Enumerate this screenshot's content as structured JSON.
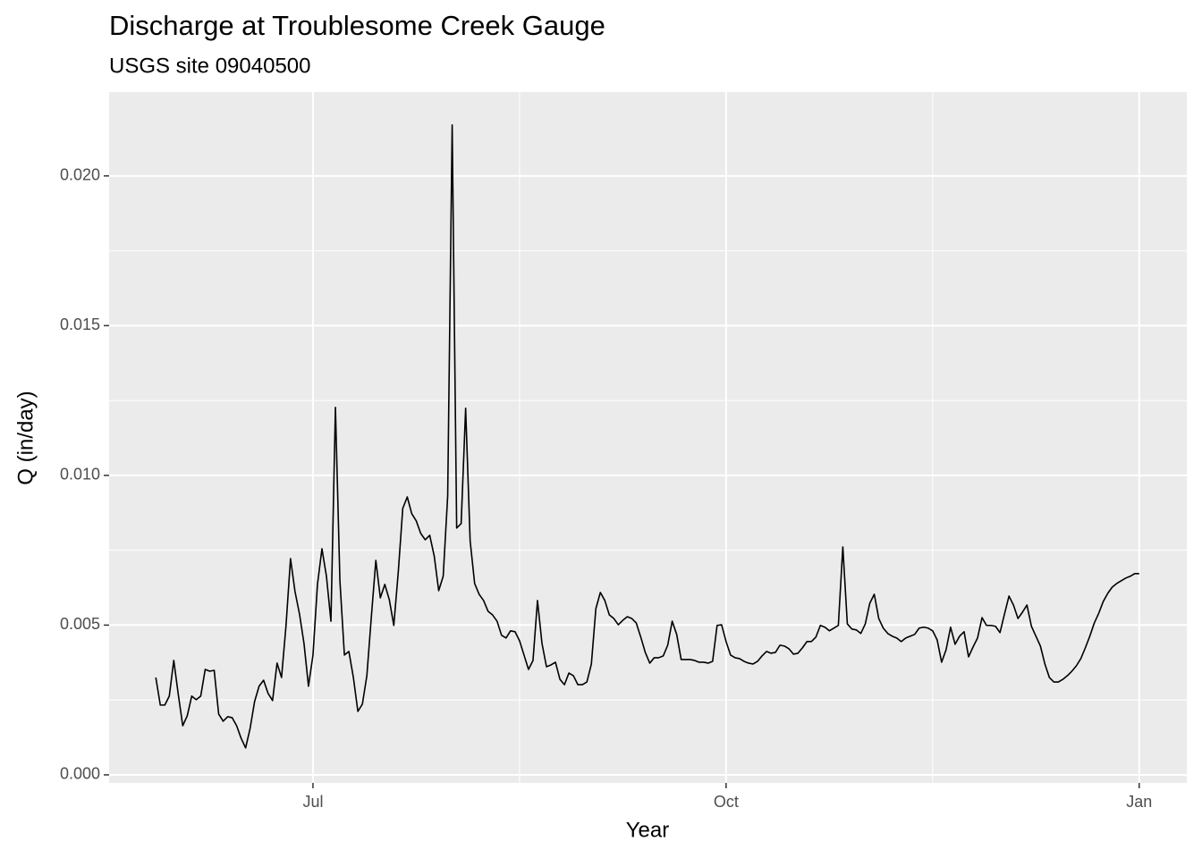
{
  "chart_data": {
    "type": "line",
    "title": "Discharge at Troublesome Creek Gauge",
    "subtitle": "USGS site 09040500",
    "x_label": "Year",
    "y_label": "Q (in/day)",
    "color": "#000000",
    "grid": true,
    "xlim": [
      -45.4,
      194.6
    ],
    "xticks": [
      {
        "value": 0,
        "label": "Jul"
      },
      {
        "value": 92,
        "label": "Oct"
      },
      {
        "value": 184,
        "label": "Jan"
      }
    ],
    "ylim": [
      -0.00027,
      0.0228
    ],
    "yticks": [
      {
        "value": 0,
        "label": "0.000"
      },
      0.005,
      {
        "value": 0.01,
        "label": "0.010"
      },
      0.015,
      {
        "value": 0.02,
        "label": "0.020"
      }
    ],
    "x": [
      -35,
      -34,
      -33,
      -32,
      -31,
      -30,
      -29,
      -28,
      -27,
      -26,
      -25,
      -24,
      -23,
      -22,
      -21,
      -20,
      -19,
      -18,
      -17,
      -16,
      -15,
      -14,
      -13,
      -12,
      -11,
      -10,
      -9,
      -8,
      -7,
      -6,
      -5,
      -4,
      -3,
      -2,
      -1,
      0,
      1,
      2,
      3,
      4,
      5,
      6,
      7,
      8,
      9,
      10,
      11,
      12,
      13,
      14,
      15,
      16,
      17,
      18,
      19,
      20,
      21,
      22,
      23,
      24,
      25,
      26,
      27,
      28,
      29,
      30,
      31,
      32,
      33,
      34,
      35,
      36,
      37,
      38,
      39,
      40,
      41,
      42,
      43,
      44,
      45,
      46,
      47,
      48,
      49,
      50,
      51,
      52,
      53,
      54,
      55,
      56,
      57,
      58,
      59,
      60,
      61,
      62,
      63,
      64,
      65,
      66,
      67,
      68,
      69,
      70,
      71,
      72,
      73,
      74,
      75,
      76,
      77,
      78,
      79,
      80,
      81,
      82,
      83,
      84,
      85,
      86,
      87,
      88,
      89,
      90,
      91,
      92,
      93,
      94,
      95,
      96,
      97,
      98,
      99,
      100,
      101,
      102,
      103,
      104,
      105,
      106,
      107,
      108,
      109,
      110,
      111,
      112,
      113,
      114,
      115,
      116,
      117,
      118,
      119,
      120,
      121,
      122,
      123,
      124,
      125,
      126,
      127,
      128,
      129,
      130,
      131,
      132,
      133,
      134,
      135,
      136,
      137,
      138,
      139,
      140,
      141,
      142,
      143,
      144,
      145,
      146,
      147,
      148,
      149,
      150,
      151,
      152,
      153,
      154,
      155,
      156,
      157,
      158,
      159,
      160,
      161,
      162,
      163,
      164,
      165,
      166,
      167,
      168,
      169,
      170,
      171,
      172,
      173,
      174,
      175,
      176,
      177,
      178,
      179,
      180,
      181,
      182,
      183,
      184
    ],
    "values": [
      0.00325,
      0.00233,
      0.00233,
      0.00263,
      0.00382,
      0.00269,
      0.00164,
      0.00197,
      0.00263,
      0.00251,
      0.00263,
      0.00352,
      0.00346,
      0.00349,
      0.00203,
      0.00179,
      0.00194,
      0.00191,
      0.00164,
      0.00122,
      0.0009,
      0.00155,
      0.00245,
      0.00296,
      0.00316,
      0.00272,
      0.00248,
      0.00373,
      0.00325,
      0.00499,
      0.00722,
      0.00612,
      0.00537,
      0.00439,
      0.00296,
      0.004,
      0.00636,
      0.00755,
      0.00663,
      0.00513,
      0.01227,
      0.00648,
      0.004,
      0.00412,
      0.00325,
      0.00212,
      0.00236,
      0.00331,
      0.00528,
      0.00716,
      0.00591,
      0.00636,
      0.00585,
      0.00499,
      0.00678,
      0.0089,
      0.00928,
      0.00872,
      0.00848,
      0.00806,
      0.00785,
      0.008,
      0.00731,
      0.00615,
      0.00663,
      0.00931,
      0.0217,
      0.00824,
      0.00839,
      0.01224,
      0.00782,
      0.00639,
      0.00603,
      0.00582,
      0.00546,
      0.00534,
      0.00513,
      0.00466,
      0.00457,
      0.00481,
      0.00478,
      0.00448,
      0.004,
      0.00352,
      0.00382,
      0.00582,
      0.00439,
      0.00361,
      0.00367,
      0.00376,
      0.00319,
      0.00301,
      0.0034,
      0.00331,
      0.00301,
      0.00301,
      0.0031,
      0.0037,
      0.00555,
      0.00609,
      0.00582,
      0.00534,
      0.00522,
      0.00501,
      0.00516,
      0.00528,
      0.00522,
      0.00507,
      0.0046,
      0.00409,
      0.00373,
      0.00391,
      0.00391,
      0.00397,
      0.00433,
      0.00513,
      0.00469,
      0.00385,
      0.00385,
      0.00385,
      0.00382,
      0.00376,
      0.00376,
      0.00373,
      0.00379,
      0.00499,
      0.00501,
      0.00445,
      0.004,
      0.00391,
      0.00388,
      0.00379,
      0.00373,
      0.0037,
      0.00379,
      0.00397,
      0.00412,
      0.00406,
      0.00409,
      0.00433,
      0.0043,
      0.00421,
      0.00403,
      0.00406,
      0.00424,
      0.00445,
      0.00445,
      0.0046,
      0.00499,
      0.00493,
      0.00481,
      0.0049,
      0.00499,
      0.00761,
      0.00504,
      0.00487,
      0.00484,
      0.00472,
      0.00504,
      0.00573,
      0.00603,
      0.00522,
      0.0049,
      0.00472,
      0.00463,
      0.00457,
      0.00445,
      0.00457,
      0.00463,
      0.00469,
      0.0049,
      0.00493,
      0.0049,
      0.00481,
      0.00451,
      0.00376,
      0.00418,
      0.00493,
      0.00436,
      0.00463,
      0.00478,
      0.00394,
      0.00427,
      0.00457,
      0.00525,
      0.00499,
      0.00499,
      0.00496,
      0.00475,
      0.00537,
      0.00597,
      0.00567,
      0.00522,
      0.00543,
      0.00567,
      0.00496,
      0.00463,
      0.0043,
      0.0037,
      0.00325,
      0.0031,
      0.0031,
      0.00319,
      0.00331,
      0.00346,
      0.00364,
      0.00388,
      0.00424,
      0.00463,
      0.00507,
      0.0054,
      0.00579,
      0.00606,
      0.00627,
      0.00639,
      0.00648,
      0.00657,
      0.00663,
      0.00672,
      0.00672
    ]
  }
}
